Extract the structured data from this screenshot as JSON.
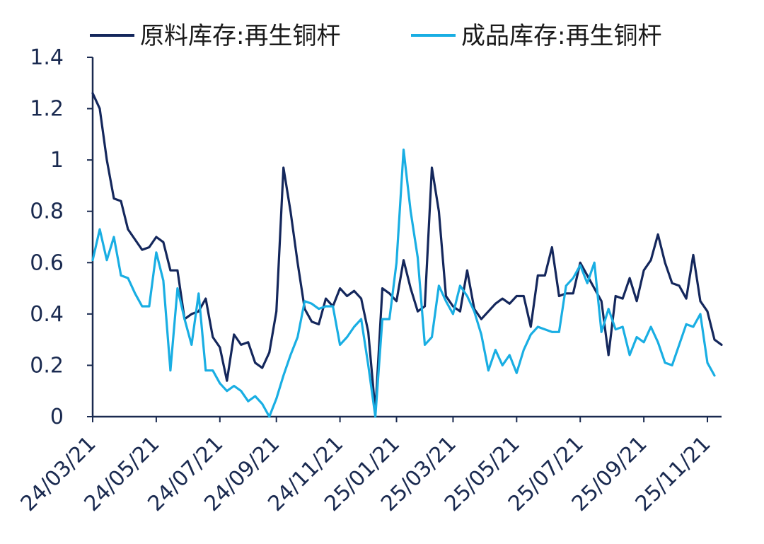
{
  "chart_data": {
    "type": "line",
    "title": "",
    "xlabel": "",
    "ylabel": "",
    "ylim": [
      0,
      1.4
    ],
    "yticks": [
      "0",
      "0.2",
      "0.4",
      "0.6",
      "0.8",
      "1",
      "1.2",
      "1.4"
    ],
    "xtick_labels": [
      "24/03/21",
      "24/05/21",
      "24/07/21",
      "24/09/21",
      "24/11/21",
      "25/01/21",
      "25/03/21",
      "25/05/21",
      "25/07/21",
      "25/09/21",
      "25/11/21"
    ],
    "xtick_points": [
      0,
      9,
      18,
      26,
      35,
      43,
      51,
      60,
      69,
      78,
      87
    ],
    "legend_position": "top",
    "grid": false,
    "series": [
      {
        "name": "原料库存:再生铜杆",
        "color": "#14275c",
        "values": [
          1.26,
          1.2,
          1.0,
          0.85,
          0.84,
          0.73,
          0.69,
          0.65,
          0.66,
          0.7,
          0.68,
          0.57,
          0.57,
          0.38,
          0.4,
          0.41,
          0.46,
          0.31,
          0.27,
          0.14,
          0.32,
          0.28,
          0.29,
          0.21,
          0.19,
          0.25,
          0.41,
          0.97,
          0.8,
          0.6,
          0.42,
          0.37,
          0.36,
          0.46,
          0.43,
          0.5,
          0.47,
          0.49,
          0.46,
          0.33,
          0.02,
          0.5,
          0.48,
          0.45,
          0.61,
          0.5,
          0.41,
          0.43,
          0.97,
          0.8,
          0.47,
          0.43,
          0.41,
          0.57,
          0.42,
          0.38,
          0.41,
          0.44,
          0.46,
          0.44,
          0.47,
          0.47,
          0.35,
          0.55,
          0.55,
          0.66,
          0.47,
          0.48,
          0.48,
          0.6,
          0.55,
          0.5,
          0.45,
          0.24,
          0.47,
          0.46,
          0.54,
          0.45,
          0.57,
          0.61,
          0.71,
          0.6,
          0.52,
          0.51,
          0.46,
          0.63,
          0.45,
          0.41,
          0.3,
          0.28
        ]
      },
      {
        "name": "成品库存:再生铜杆",
        "color": "#19aee3",
        "values": [
          0.61,
          0.73,
          0.61,
          0.7,
          0.55,
          0.54,
          0.48,
          0.43,
          0.43,
          0.64,
          0.53,
          0.18,
          0.5,
          0.38,
          0.28,
          0.48,
          0.18,
          0.18,
          0.13,
          0.1,
          0.12,
          0.1,
          0.06,
          0.08,
          0.05,
          0.0,
          0.07,
          0.16,
          0.24,
          0.31,
          0.45,
          0.44,
          0.42,
          0.43,
          0.43,
          0.28,
          0.31,
          0.35,
          0.38,
          0.2,
          0.0,
          0.38,
          0.38,
          0.6,
          1.04,
          0.8,
          0.62,
          0.28,
          0.31,
          0.51,
          0.45,
          0.4,
          0.51,
          0.47,
          0.41,
          0.32,
          0.18,
          0.26,
          0.2,
          0.24,
          0.17,
          0.26,
          0.32,
          0.35,
          0.34,
          0.33,
          0.33,
          0.51,
          0.54,
          0.59,
          0.52,
          0.6,
          0.33,
          0.42,
          0.34,
          0.35,
          0.24,
          0.31,
          0.29,
          0.35,
          0.29,
          0.21,
          0.2,
          0.28,
          0.36,
          0.35,
          0.4,
          0.21,
          0.16
        ]
      }
    ]
  }
}
